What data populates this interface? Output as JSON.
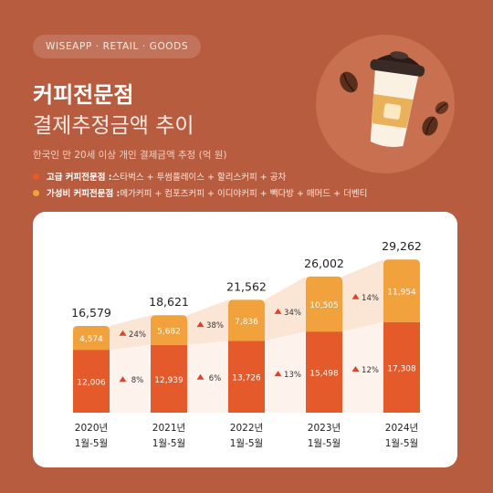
{
  "brand": "WISEAPP · RETAIL · GOODS",
  "title_bold": "커피전문점",
  "title_light": "결제추정금액 추이",
  "subtitle": "한국인 만 20세 이상 개인 결제금액 추정 (억 원)",
  "legend": [
    {
      "key": "고급 커피전문점 :",
      "items": " 스타벅스 + 투썸플레이스 + 할리스커피 + 공차",
      "color": "#e55a2a"
    },
    {
      "key": "가성비 커피전문점 :",
      "items": " 메가커피 + 컴포즈커피 + 이디야커피 + 빽다방 + 매머드 + 더벤티",
      "color": "#f2a23d"
    }
  ],
  "colors": {
    "premium": "#e55a2a",
    "value": "#f2a23d",
    "band_value": "#fbe6d6",
    "band_premium": "#fdf3ec",
    "up_arrow": "#e0402c",
    "background": "#b85c40"
  },
  "chart_data": {
    "type": "bar",
    "stacked": true,
    "categories": [
      [
        "2020년",
        "1월-5월"
      ],
      [
        "2021년",
        "1월-5월"
      ],
      [
        "2022년",
        "1월-5월"
      ],
      [
        "2023년",
        "1월-5월"
      ],
      [
        "2024년",
        "1월-5월"
      ]
    ],
    "series": [
      {
        "key": "premium",
        "values": [
          12006,
          12939,
          13726,
          15498,
          17308
        ]
      },
      {
        "key": "value",
        "values": [
          4574,
          5682,
          7836,
          10505,
          11954
        ]
      }
    ],
    "totals": [
      "16,579",
      "18,621",
      "21,562",
      "26,002",
      "29,262"
    ],
    "value_labels": {
      "premium": [
        "12,006",
        "12,939",
        "13,726",
        "15,498",
        "17,308"
      ],
      "value": [
        "4,574",
        "5,682",
        "7,836",
        "10,505",
        "11,954"
      ]
    },
    "growth": {
      "value": [
        "24%",
        "38%",
        "34%",
        "14%"
      ],
      "premium": [
        "8%",
        "6%",
        "13%",
        "12%"
      ]
    },
    "ylim": [
      0,
      30000
    ]
  }
}
